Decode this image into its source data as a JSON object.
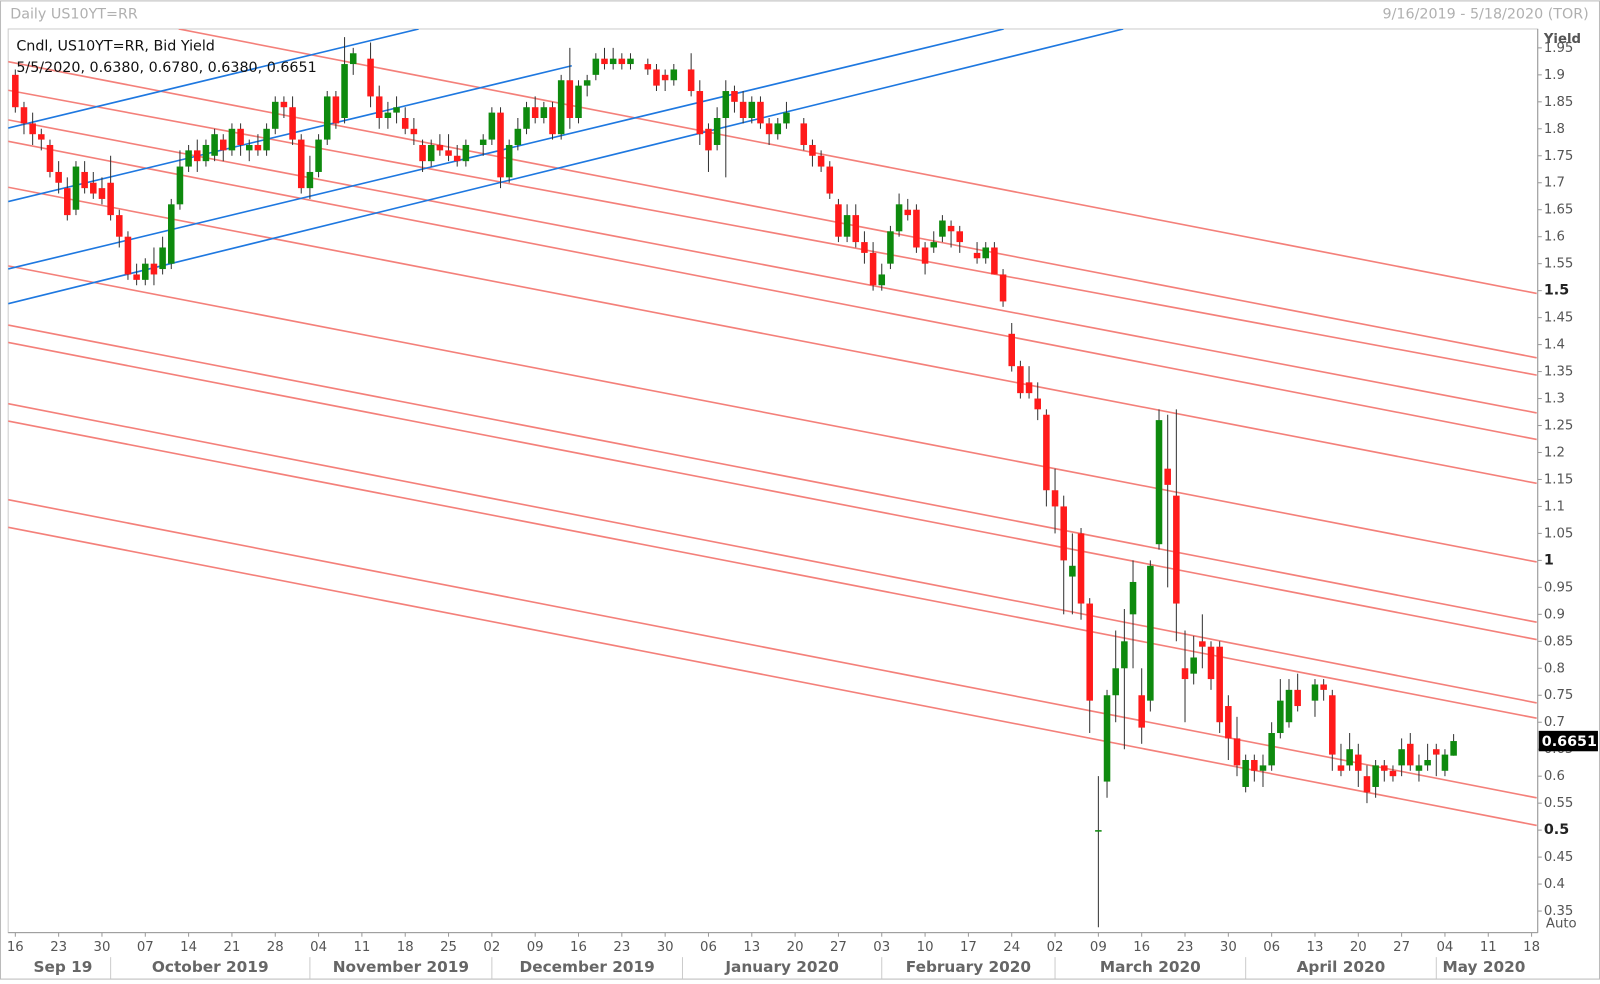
{
  "chart_data": {
    "type": "candlestick",
    "title": "Daily US10YT=RR",
    "date_range": "9/16/2019 - 5/18/2020 (TOR)",
    "legend": [
      "Cndl, US10YT=RR, Bid Yield",
      "5/5/2020, 0.6380, 0.6780, 0.6380, 0.6651"
    ],
    "y_label": "Yield",
    "scale_mode": "Auto",
    "up_color": "#0e8a0e",
    "down_color": "#ff1a1a",
    "wick_color": "#333333",
    "last_value": {
      "value": 0.6651,
      "label": "0.6651"
    },
    "xlim": [
      "9/16/2019",
      "5/18/2020"
    ],
    "ylim": [
      0.31,
      1.985
    ],
    "yticks": [
      0.35,
      0.4,
      0.45,
      0.5,
      0.55,
      0.6,
      0.65,
      0.7,
      0.75,
      0.8,
      0.85,
      0.9,
      0.95,
      1,
      1.05,
      1.1,
      1.15,
      1.2,
      1.25,
      1.3,
      1.35,
      1.4,
      1.45,
      1.5,
      1.55,
      1.6,
      1.65,
      1.7,
      1.75,
      1.8,
      1.85,
      1.9,
      1.95
    ],
    "xticks": [
      {
        "value": "9/16/2019",
        "label": "16"
      },
      {
        "value": "9/23/2019",
        "label": "23"
      },
      {
        "value": "9/30/2019",
        "label": "30"
      },
      {
        "value": "10/7/2019",
        "label": "07"
      },
      {
        "value": "10/14/2019",
        "label": "14"
      },
      {
        "value": "10/21/2019",
        "label": "21"
      },
      {
        "value": "10/28/2019",
        "label": "28"
      },
      {
        "value": "11/4/2019",
        "label": "04"
      },
      {
        "value": "11/11/2019",
        "label": "11"
      },
      {
        "value": "11/18/2019",
        "label": "18"
      },
      {
        "value": "11/25/2019",
        "label": "25"
      },
      {
        "value": "12/2/2019",
        "label": "02"
      },
      {
        "value": "12/9/2019",
        "label": "09"
      },
      {
        "value": "12/16/2019",
        "label": "16"
      },
      {
        "value": "12/23/2019",
        "label": "23"
      },
      {
        "value": "12/30/2019",
        "label": "30"
      },
      {
        "value": "1/6/2020",
        "label": "06"
      },
      {
        "value": "1/13/2020",
        "label": "13"
      },
      {
        "value": "1/20/2020",
        "label": "20"
      },
      {
        "value": "1/27/2020",
        "label": "27"
      },
      {
        "value": "2/3/2020",
        "label": "03"
      },
      {
        "value": "2/10/2020",
        "label": "10"
      },
      {
        "value": "2/17/2020",
        "label": "17"
      },
      {
        "value": "2/24/2020",
        "label": "24"
      },
      {
        "value": "3/2/2020",
        "label": "02"
      },
      {
        "value": "3/9/2020",
        "label": "09"
      },
      {
        "value": "3/16/2020",
        "label": "16"
      },
      {
        "value": "3/23/2020",
        "label": "23"
      },
      {
        "value": "3/30/2020",
        "label": "30"
      },
      {
        "value": "4/6/2020",
        "label": "06"
      },
      {
        "value": "4/13/2020",
        "label": "13"
      },
      {
        "value": "4/20/2020",
        "label": "20"
      },
      {
        "value": "4/27/2020",
        "label": "27"
      },
      {
        "value": "5/4/2020",
        "label": "04"
      },
      {
        "value": "5/11/2020",
        "label": "11"
      },
      {
        "value": "5/18/2020",
        "label": "18"
      }
    ],
    "month_labels": [
      {
        "value": "9/16/2019",
        "label": "Sep 19"
      },
      {
        "value": "10/1/2019",
        "label": "October 2019"
      },
      {
        "value": "11/1/2019",
        "label": "November 2019"
      },
      {
        "value": "12/1/2019",
        "label": "December 2019"
      },
      {
        "value": "1/1/2020",
        "label": "January 2020"
      },
      {
        "value": "2/1/2020",
        "label": "February 2020"
      },
      {
        "value": "3/1/2020",
        "label": "March 2020"
      },
      {
        "value": "4/1/2020",
        "label": "April 2020"
      },
      {
        "value": "5/1/2020",
        "label": "May 2020"
      }
    ],
    "x": [
      "9/16/2019",
      "9/17/2019",
      "9/18/2019",
      "9/19/2019",
      "9/20/2019",
      "9/23/2019",
      "9/24/2019",
      "9/25/2019",
      "9/26/2019",
      "9/27/2019",
      "9/30/2019",
      "10/1/2019",
      "10/2/2019",
      "10/3/2019",
      "10/4/2019",
      "10/7/2019",
      "10/8/2019",
      "10/9/2019",
      "10/10/2019",
      "10/11/2019",
      "10/14/2019",
      "10/15/2019",
      "10/16/2019",
      "10/17/2019",
      "10/18/2019",
      "10/21/2019",
      "10/22/2019",
      "10/23/2019",
      "10/24/2019",
      "10/25/2019",
      "10/28/2019",
      "10/29/2019",
      "10/30/2019",
      "10/31/2019",
      "11/1/2019",
      "11/4/2019",
      "11/5/2019",
      "11/6/2019",
      "11/7/2019",
      "11/8/2019",
      "11/12/2019",
      "11/13/2019",
      "11/14/2019",
      "11/15/2019",
      "11/18/2019",
      "11/19/2019",
      "11/20/2019",
      "11/21/2019",
      "11/22/2019",
      "11/25/2019",
      "11/26/2019",
      "11/27/2019",
      "11/29/2019",
      "12/2/2019",
      "12/3/2019",
      "12/4/2019",
      "12/5/2019",
      "12/6/2019",
      "12/9/2019",
      "12/10/2019",
      "12/11/2019",
      "12/12/2019",
      "12/13/2019",
      "12/16/2019",
      "12/17/2019",
      "12/18/2019",
      "12/19/2019",
      "12/20/2019",
      "12/23/2019",
      "12/24/2019",
      "12/26/2019",
      "12/27/2019",
      "12/30/2019",
      "12/31/2019",
      "1/2/2020",
      "1/3/2020",
      "1/6/2020",
      "1/7/2020",
      "1/8/2020",
      "1/9/2020",
      "1/10/2020",
      "1/13/2020",
      "1/14/2020",
      "1/15/2020",
      "1/16/2020",
      "1/17/2020",
      "1/21/2020",
      "1/22/2020",
      "1/23/2020",
      "1/24/2020",
      "1/27/2020",
      "1/28/2020",
      "1/29/2020",
      "1/30/2020",
      "1/31/2020",
      "2/3/2020",
      "2/4/2020",
      "2/5/2020",
      "2/6/2020",
      "2/7/2020",
      "2/10/2020",
      "2/11/2020",
      "2/12/2020",
      "2/13/2020",
      "2/14/2020",
      "2/18/2020",
      "2/19/2020",
      "2/20/2020",
      "2/21/2020",
      "2/24/2020",
      "2/25/2020",
      "2/26/2020",
      "2/27/2020",
      "2/28/2020",
      "3/2/2020",
      "3/3/2020",
      "3/4/2020",
      "3/5/2020",
      "3/6/2020",
      "3/9/2020",
      "3/10/2020",
      "3/11/2020",
      "3/12/2020",
      "3/13/2020",
      "3/16/2020",
      "3/17/2020",
      "3/18/2020",
      "3/19/2020",
      "3/20/2020",
      "3/23/2020",
      "3/24/2020",
      "3/25/2020",
      "3/26/2020",
      "3/27/2020",
      "3/30/2020",
      "3/31/2020",
      "4/1/2020",
      "4/2/2020",
      "4/3/2020",
      "4/6/2020",
      "4/7/2020",
      "4/8/2020",
      "4/9/2020",
      "4/13/2020",
      "4/14/2020",
      "4/15/2020",
      "4/16/2020",
      "4/17/2020",
      "4/20/2020",
      "4/21/2020",
      "4/22/2020",
      "4/23/2020",
      "4/24/2020",
      "4/27/2020",
      "4/28/2020",
      "4/29/2020",
      "4/30/2020",
      "5/1/2020",
      "5/4/2020",
      "5/5/2020"
    ],
    "open": [
      1.9,
      1.84,
      1.81,
      1.79,
      1.77,
      1.72,
      1.69,
      1.65,
      1.72,
      1.7,
      1.69,
      1.7,
      1.64,
      1.6,
      1.53,
      1.52,
      1.55,
      1.54,
      1.55,
      1.66,
      1.73,
      1.76,
      1.74,
      1.75,
      1.78,
      1.76,
      1.8,
      1.76,
      1.77,
      1.76,
      1.8,
      1.85,
      1.84,
      1.78,
      1.69,
      1.72,
      1.78,
      1.86,
      1.82,
      1.92,
      1.93,
      1.86,
      1.82,
      1.83,
      1.82,
      1.8,
      1.77,
      1.74,
      1.77,
      1.76,
      1.75,
      1.74,
      1.77,
      1.78,
      1.83,
      1.71,
      1.77,
      1.8,
      1.84,
      1.82,
      1.84,
      1.79,
      1.89,
      1.82,
      1.88,
      1.9,
      1.93,
      1.92,
      1.93,
      1.92,
      1.92,
      1.91,
      1.9,
      1.89,
      1.91,
      1.87,
      1.8,
      1.77,
      1.82,
      1.87,
      1.85,
      1.82,
      1.85,
      1.81,
      1.79,
      1.81,
      1.81,
      1.77,
      1.75,
      1.73,
      1.66,
      1.6,
      1.64,
      1.59,
      1.57,
      1.51,
      1.55,
      1.61,
      1.65,
      1.65,
      1.58,
      1.58,
      1.6,
      1.62,
      1.61,
      1.57,
      1.56,
      1.58,
      1.53,
      1.42,
      1.36,
      1.33,
      1.3,
      1.27,
      1.13,
      1.1,
      0.97,
      1.05,
      0.92,
      0.5,
      0.59,
      0.75,
      0.8,
      0.9,
      0.75,
      0.74,
      1.03,
      1.17,
      1.12,
      0.8,
      0.79,
      0.85,
      0.84,
      0.84,
      0.73,
      0.67,
      0.58,
      0.63,
      0.61,
      0.62,
      0.68,
      0.7,
      0.76,
      0.74,
      0.77,
      0.75,
      0.62,
      0.62,
      0.64,
      0.6,
      0.58,
      0.62,
      0.61,
      0.62,
      0.66,
      0.61,
      0.62,
      0.65,
      0.61,
      0.638
    ],
    "high": [
      1.91,
      1.85,
      1.83,
      1.8,
      1.78,
      1.74,
      1.71,
      1.74,
      1.74,
      1.72,
      1.71,
      1.75,
      1.65,
      1.61,
      1.55,
      1.56,
      1.58,
      1.6,
      1.67,
      1.76,
      1.77,
      1.78,
      1.78,
      1.8,
      1.79,
      1.81,
      1.81,
      1.78,
      1.79,
      1.81,
      1.86,
      1.86,
      1.86,
      1.79,
      1.75,
      1.79,
      1.87,
      1.87,
      1.97,
      1.95,
      1.96,
      1.88,
      1.85,
      1.86,
      1.84,
      1.82,
      1.78,
      1.78,
      1.79,
      1.79,
      1.77,
      1.78,
      1.79,
      1.84,
      1.84,
      1.78,
      1.82,
      1.85,
      1.86,
      1.85,
      1.85,
      1.9,
      1.95,
      1.89,
      1.9,
      1.94,
      1.95,
      1.95,
      1.94,
      1.94,
      1.93,
      1.92,
      1.91,
      1.92,
      1.94,
      1.89,
      1.81,
      1.84,
      1.89,
      1.88,
      1.87,
      1.86,
      1.86,
      1.82,
      1.82,
      1.85,
      1.82,
      1.78,
      1.76,
      1.74,
      1.67,
      1.66,
      1.66,
      1.61,
      1.59,
      1.55,
      1.62,
      1.68,
      1.67,
      1.66,
      1.59,
      1.61,
      1.64,
      1.63,
      1.62,
      1.59,
      1.59,
      1.59,
      1.54,
      1.44,
      1.37,
      1.36,
      1.33,
      1.28,
      1.17,
      1.12,
      1.05,
      1.06,
      0.93,
      0.6,
      0.76,
      0.87,
      0.91,
      1.0,
      0.8,
      1.0,
      1.28,
      1.27,
      1.28,
      0.87,
      0.86,
      0.9,
      0.85,
      0.85,
      0.75,
      0.71,
      0.64,
      0.64,
      0.64,
      0.7,
      0.78,
      0.78,
      0.79,
      0.78,
      0.78,
      0.76,
      0.66,
      0.68,
      0.66,
      0.62,
      0.63,
      0.63,
      0.62,
      0.67,
      0.68,
      0.64,
      0.66,
      0.66,
      0.65,
      0.678
    ],
    "low": [
      1.83,
      1.79,
      1.77,
      1.76,
      1.71,
      1.68,
      1.63,
      1.64,
      1.68,
      1.67,
      1.66,
      1.63,
      1.58,
      1.52,
      1.51,
      1.51,
      1.51,
      1.53,
      1.54,
      1.65,
      1.72,
      1.72,
      1.73,
      1.74,
      1.74,
      1.75,
      1.75,
      1.74,
      1.75,
      1.75,
      1.79,
      1.82,
      1.77,
      1.68,
      1.67,
      1.71,
      1.77,
      1.8,
      1.81,
      1.9,
      1.84,
      1.8,
      1.8,
      1.81,
      1.79,
      1.77,
      1.72,
      1.73,
      1.75,
      1.74,
      1.73,
      1.73,
      1.75,
      1.77,
      1.69,
      1.7,
      1.76,
      1.79,
      1.81,
      1.81,
      1.78,
      1.78,
      1.8,
      1.81,
      1.86,
      1.89,
      1.91,
      1.91,
      1.91,
      1.91,
      1.9,
      1.87,
      1.87,
      1.88,
      1.86,
      1.77,
      1.72,
      1.76,
      1.71,
      1.83,
      1.81,
      1.81,
      1.8,
      1.77,
      1.78,
      1.8,
      1.76,
      1.73,
      1.72,
      1.67,
      1.59,
      1.59,
      1.58,
      1.55,
      1.5,
      1.5,
      1.54,
      1.6,
      1.63,
      1.57,
      1.53,
      1.57,
      1.59,
      1.58,
      1.57,
      1.55,
      1.55,
      1.53,
      1.47,
      1.35,
      1.3,
      1.3,
      1.26,
      1.1,
      1.05,
      0.9,
      0.9,
      0.89,
      0.68,
      0.32,
      0.56,
      0.7,
      0.65,
      0.8,
      0.66,
      0.72,
      1.02,
      0.95,
      0.85,
      0.7,
      0.77,
      0.8,
      0.76,
      0.68,
      0.63,
      0.6,
      0.57,
      0.59,
      0.58,
      0.61,
      0.67,
      0.69,
      0.72,
      0.71,
      0.74,
      0.61,
      0.6,
      0.61,
      0.58,
      0.55,
      0.56,
      0.59,
      0.59,
      0.6,
      0.61,
      0.59,
      0.61,
      0.6,
      0.6,
      0.638
    ],
    "close": [
      1.84,
      1.81,
      1.79,
      1.78,
      1.72,
      1.7,
      1.64,
      1.73,
      1.69,
      1.68,
      1.67,
      1.64,
      1.6,
      1.53,
      1.52,
      1.55,
      1.53,
      1.58,
      1.66,
      1.73,
      1.76,
      1.74,
      1.77,
      1.79,
      1.76,
      1.8,
      1.77,
      1.77,
      1.76,
      1.8,
      1.85,
      1.84,
      1.78,
      1.69,
      1.72,
      1.78,
      1.86,
      1.81,
      1.92,
      1.94,
      1.86,
      1.82,
      1.83,
      1.84,
      1.8,
      1.79,
      1.74,
      1.77,
      1.76,
      1.75,
      1.74,
      1.77,
      1.78,
      1.83,
      1.71,
      1.77,
      1.8,
      1.84,
      1.82,
      1.84,
      1.79,
      1.89,
      1.82,
      1.88,
      1.89,
      1.93,
      1.92,
      1.93,
      1.92,
      1.93,
      1.91,
      1.88,
      1.89,
      1.91,
      1.87,
      1.79,
      1.76,
      1.82,
      1.87,
      1.85,
      1.82,
      1.85,
      1.81,
      1.79,
      1.81,
      1.83,
      1.77,
      1.75,
      1.73,
      1.68,
      1.6,
      1.64,
      1.59,
      1.57,
      1.51,
      1.53,
      1.61,
      1.66,
      1.64,
      1.58,
      1.55,
      1.59,
      1.63,
      1.61,
      1.59,
      1.56,
      1.58,
      1.53,
      1.48,
      1.36,
      1.31,
      1.31,
      1.28,
      1.13,
      1.1,
      1.0,
      0.99,
      0.92,
      0.74,
      0.5,
      0.75,
      0.8,
      0.85,
      0.96,
      0.69,
      0.99,
      1.26,
      1.14,
      0.92,
      0.78,
      0.82,
      0.84,
      0.78,
      0.7,
      0.67,
      0.62,
      0.63,
      0.61,
      0.62,
      0.68,
      0.74,
      0.76,
      0.73,
      0.77,
      0.76,
      0.64,
      0.61,
      0.65,
      0.61,
      0.57,
      0.62,
      0.61,
      0.6,
      0.65,
      0.62,
      0.62,
      0.63,
      0.64,
      0.64,
      0.6651
    ]
  }
}
